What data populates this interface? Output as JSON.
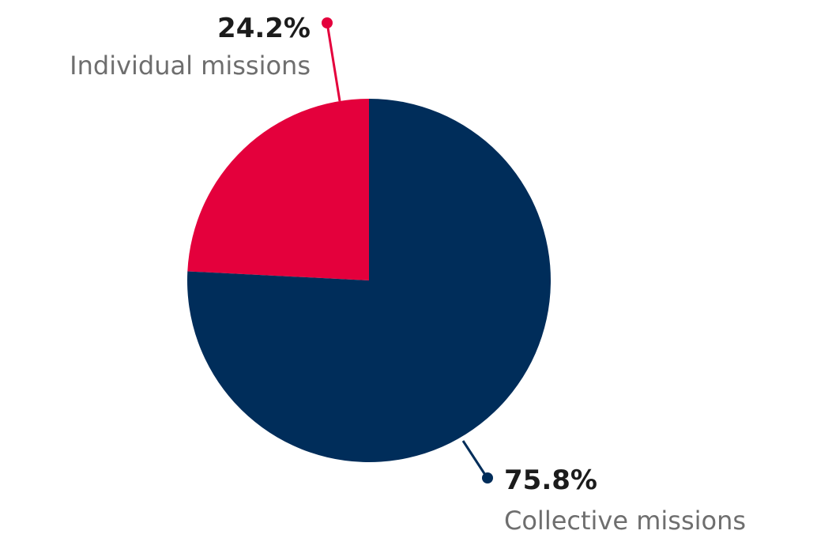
{
  "chart_data": {
    "type": "pie",
    "categories": [
      "Individual missions",
      "Collective missions"
    ],
    "values": [
      24.2,
      75.8
    ],
    "value_labels": [
      "24.2%",
      "75.8%"
    ],
    "colors": [
      "#e4003c",
      "#002d5a"
    ],
    "start_angle_deg": 0,
    "direction": "counterclockwise",
    "legend": "none"
  }
}
